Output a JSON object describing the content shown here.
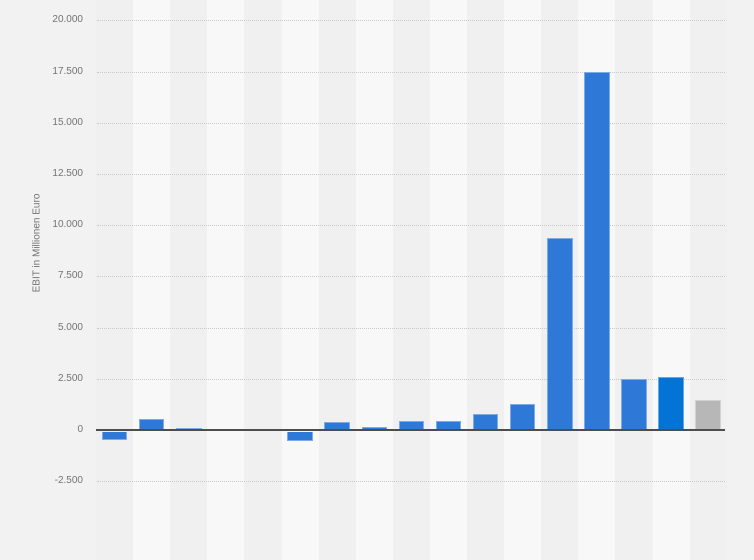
{
  "y_axis": {
    "title": "EBIT in Millionen Euro",
    "tick_labels": [
      "20.000",
      "17.500",
      "15.000",
      "12.500",
      "10.000",
      "7.500",
      "5.000",
      "2.500",
      "0",
      "-2.500"
    ],
    "tick_values": [
      20000,
      17500,
      15000,
      12500,
      10000,
      7500,
      5000,
      2500,
      0,
      -2500
    ]
  },
  "chart_data": {
    "type": "bar",
    "title": "",
    "xlabel": "",
    "ylabel": "EBIT in Millionen Euro",
    "categories": [
      "",
      "",
      "",
      "",
      "",
      "",
      "",
      "",
      "",
      "",
      "",
      "",
      "",
      "",
      "",
      "",
      ""
    ],
    "values": [
      -400,
      550,
      100,
      10,
      30,
      -450,
      370,
      130,
      430,
      440,
      800,
      1280,
      9380,
      17470,
      2480,
      2570,
      1480
    ],
    "ylim": [
      -2500,
      20000
    ],
    "grid": "horizontal-dotted",
    "legend": "none",
    "highlight_index": 15,
    "forecast_index": 16
  },
  "colors": {
    "background": "#f2f2f2",
    "stripe_dark": "#f0f0f1",
    "stripe_light": "#f8f8f8",
    "gridline": "#c8c8c8",
    "zero_axis": "#4d4d4d",
    "bar_default": "#2e78d8",
    "bar_highlight": "#0473d6",
    "bar_forecast": "#b7b7b7",
    "tick_text": "#737373"
  }
}
